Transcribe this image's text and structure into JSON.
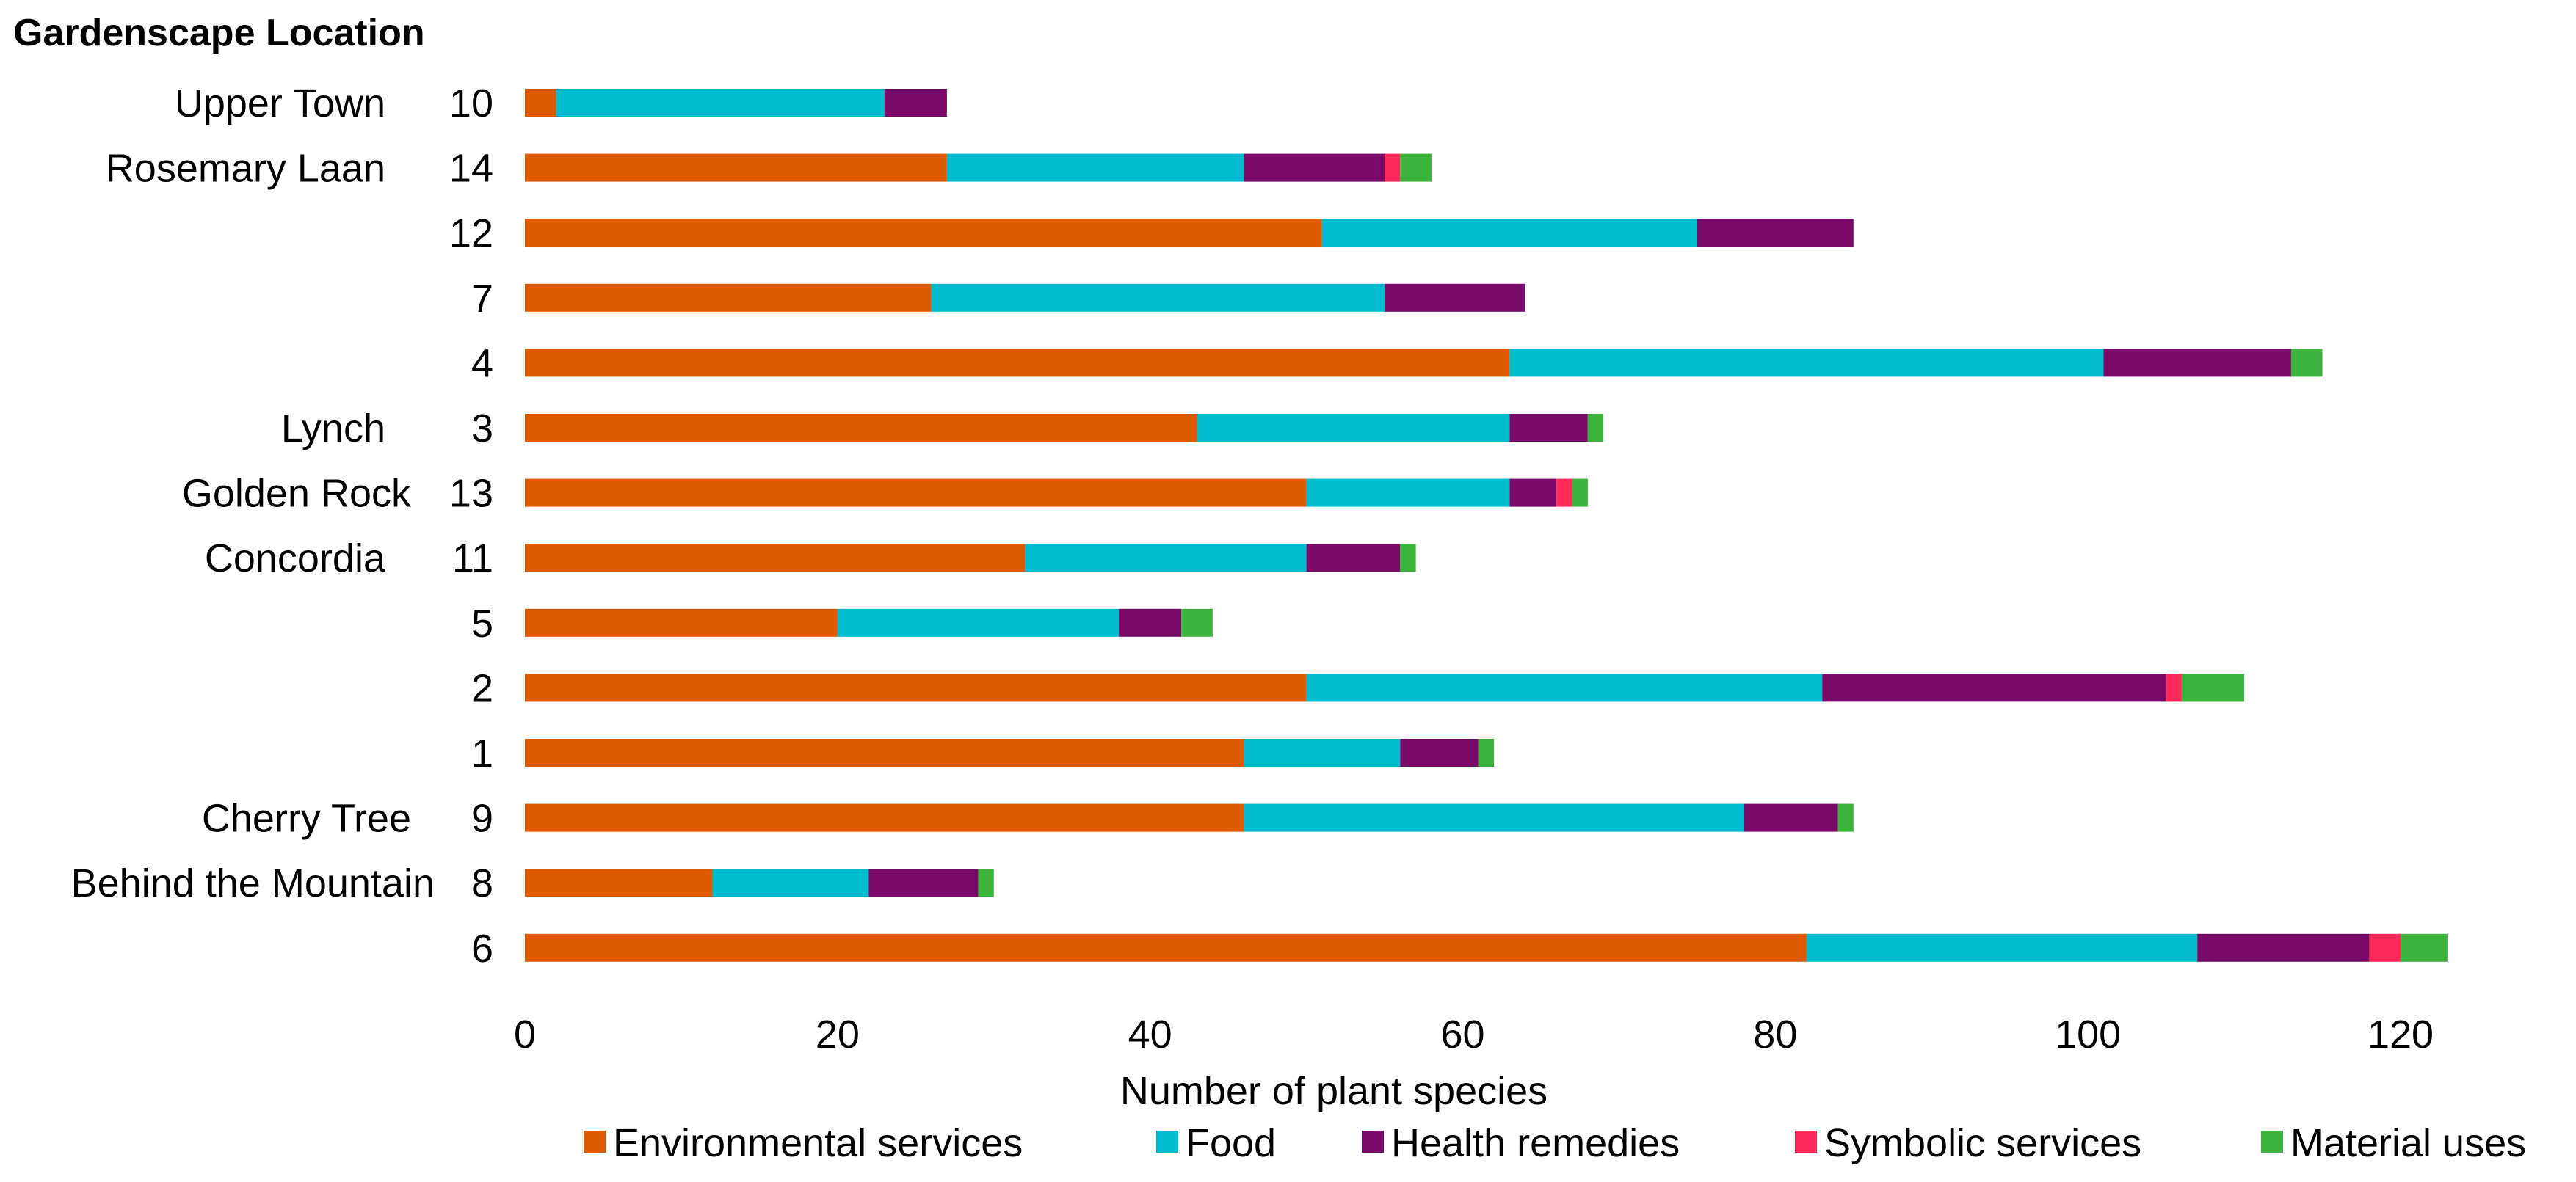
{
  "chart_data": {
    "type": "bar",
    "orientation": "horizontal",
    "stacked": true,
    "title": "Gardenscape Location",
    "xlabel": "Number of plant species",
    "ylabel": "",
    "xlim": [
      0,
      125
    ],
    "xticks": [
      0,
      20,
      40,
      60,
      80,
      100,
      120
    ],
    "grid": false,
    "legend_position": "bottom",
    "categories": [
      "10",
      "14",
      "12",
      "7",
      "4",
      "3",
      "13",
      "11",
      "5",
      "2",
      "1",
      "9",
      "8",
      "6"
    ],
    "locations": [
      "Upper Town",
      "Rosemary Laan",
      "",
      "",
      "",
      "Lynch",
      "Golden Rock",
      "Concordia",
      "",
      "",
      "",
      "Cherry Tree",
      "Behind the Mountain",
      ""
    ],
    "series": [
      {
        "name": "Environmental services",
        "color": "#e05a00",
        "values": [
          2,
          27,
          51,
          26,
          63,
          43,
          50,
          32,
          20,
          50,
          46,
          46,
          12,
          82
        ]
      },
      {
        "name": "Food",
        "color": "#00bcd0",
        "values": [
          21,
          19,
          24,
          29,
          38,
          20,
          13,
          18,
          18,
          33,
          10,
          32,
          10,
          25
        ]
      },
      {
        "name": "Health remedies",
        "color": "#7a0a6a",
        "values": [
          4,
          9,
          10,
          9,
          12,
          5,
          3,
          6,
          4,
          22,
          5,
          6,
          7,
          11
        ]
      },
      {
        "name": "Symbolic services",
        "color": "#ff2a5a",
        "values": [
          0,
          1,
          0,
          0,
          0,
          0,
          1,
          0,
          0,
          1,
          0,
          0,
          0,
          2
        ]
      },
      {
        "name": "Material uses",
        "color": "#3cb43c",
        "values": [
          0,
          2,
          0,
          0,
          2,
          1,
          1,
          1,
          2,
          4,
          1,
          1,
          1,
          3
        ]
      }
    ]
  }
}
